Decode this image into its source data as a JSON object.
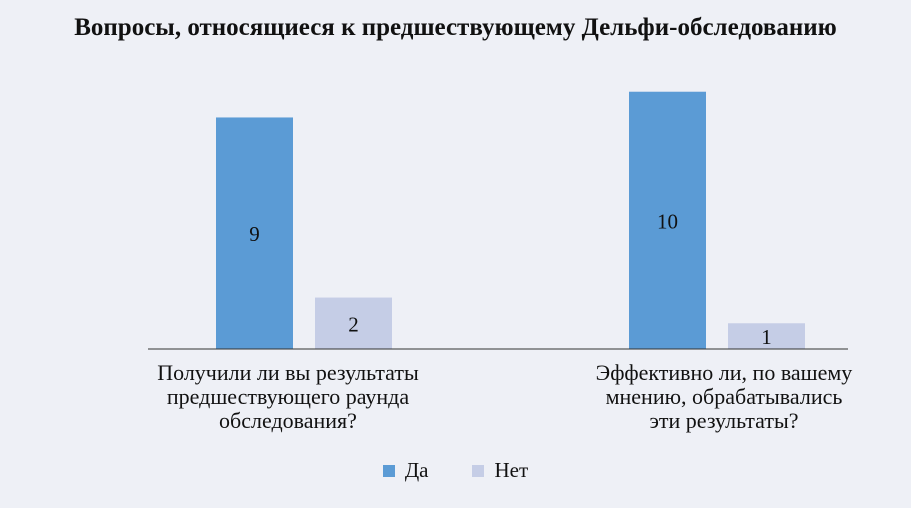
{
  "chart_data": {
    "type": "bar",
    "title": "Вопросы, относящиеся к предшествующему Дельфи-обследованию",
    "categories": [
      "Получили ли вы результаты предшествующего раунда обследования?",
      "Эффективно ли, по вашему мнению, обрабатывались эти результаты?"
    ],
    "category_lines": [
      [
        "Получили ли вы результаты",
        "предшествующего раунда",
        "обследования?"
      ],
      [
        "Эффективно ли, по вашему",
        "мнению, обрабатывались",
        "эти результаты?"
      ]
    ],
    "series": [
      {
        "name": "Да",
        "values": [
          9,
          10
        ],
        "color": "#5b9bd5"
      },
      {
        "name": "Нет",
        "values": [
          2,
          1
        ],
        "color": "#c5cde6"
      }
    ],
    "ylim": [
      0,
      11
    ],
    "grid": false,
    "legend_position": "bottom",
    "data_labels": true
  }
}
